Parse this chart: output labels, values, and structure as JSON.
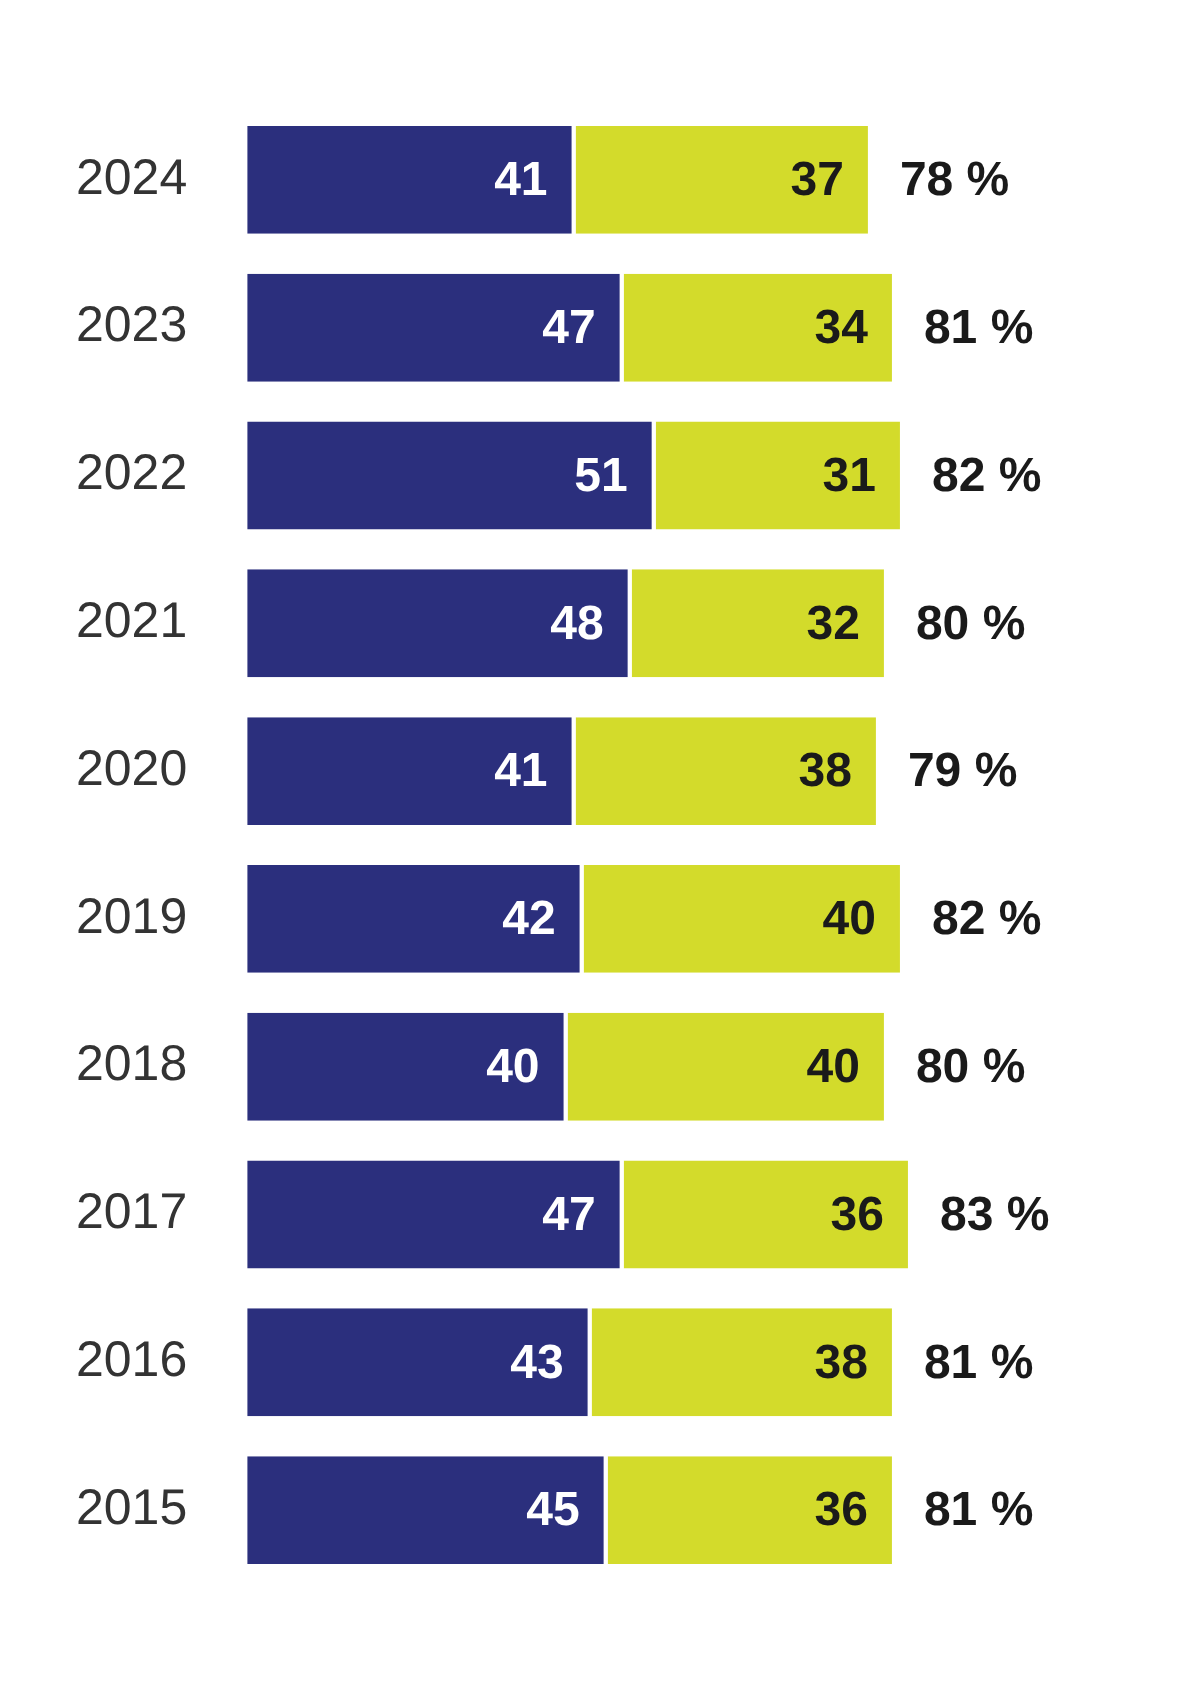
{
  "chart_data": {
    "type": "bar",
    "orientation": "horizontal",
    "stacked": true,
    "data_labels": true,
    "categories": [
      "2024",
      "2023",
      "2022",
      "2021",
      "2020",
      "2019",
      "2018",
      "2017",
      "2016",
      "2015"
    ],
    "series": [
      {
        "color": "#2b2f7d",
        "values": [
          41,
          47,
          51,
          48,
          41,
          42,
          40,
          47,
          43,
          45
        ]
      },
      {
        "color": "#d3db2b",
        "values": [
          37,
          34,
          31,
          32,
          38,
          40,
          40,
          36,
          38,
          36
        ]
      }
    ],
    "totals": [
      "78 %",
      "81 %",
      "82 %",
      "80 %",
      "79 %",
      "82 %",
      "80 %",
      "83 %",
      "81 %",
      "81 %"
    ]
  }
}
